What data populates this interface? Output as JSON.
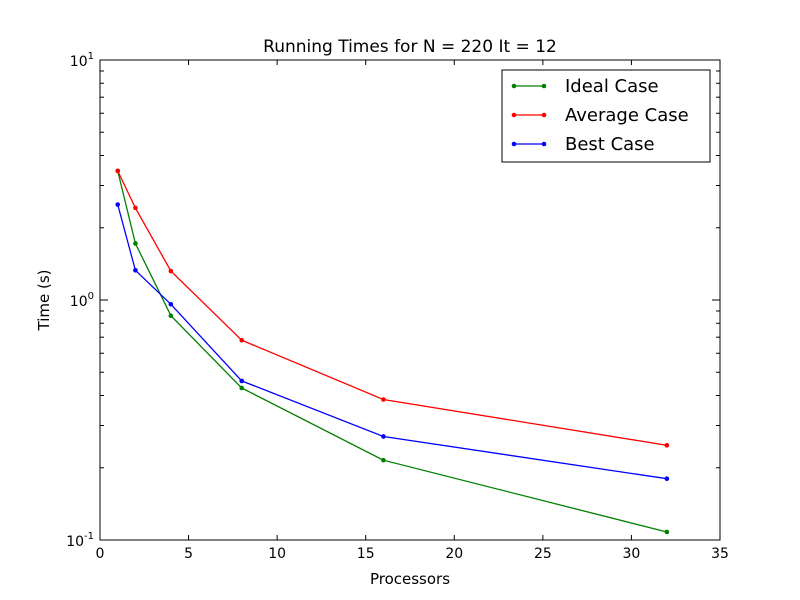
{
  "chart_data": {
    "type": "line",
    "title": "Running Times for N = 220 It = 12",
    "xlabel": "Processors",
    "ylabel": "Time (s)",
    "xlim": [
      0,
      35
    ],
    "ylim": [
      0.1,
      10
    ],
    "yscale": "log",
    "xticks": [
      0,
      5,
      10,
      15,
      20,
      25,
      30,
      35
    ],
    "yticks": [
      {
        "value": 0.1,
        "base": "10",
        "exp": "-1"
      },
      {
        "value": 1,
        "base": "10",
        "exp": "0"
      },
      {
        "value": 10,
        "base": "10",
        "exp": "1"
      }
    ],
    "legend": "top-right",
    "grid": false,
    "series": [
      {
        "name": "Ideal Case",
        "color": "#008000",
        "x": [
          1,
          2,
          4,
          8,
          16,
          32
        ],
        "y": [
          3.45,
          1.72,
          0.86,
          0.43,
          0.215,
          0.108
        ]
      },
      {
        "name": "Average Case",
        "color": "#ff0000",
        "x": [
          1,
          2,
          4,
          8,
          16,
          32
        ],
        "y": [
          3.45,
          2.42,
          1.32,
          0.68,
          0.385,
          0.248
        ]
      },
      {
        "name": "Best Case",
        "color": "#0000ff",
        "x": [
          1,
          2,
          4,
          8,
          16,
          32
        ],
        "y": [
          2.5,
          1.33,
          0.96,
          0.46,
          0.27,
          0.18
        ]
      }
    ]
  }
}
